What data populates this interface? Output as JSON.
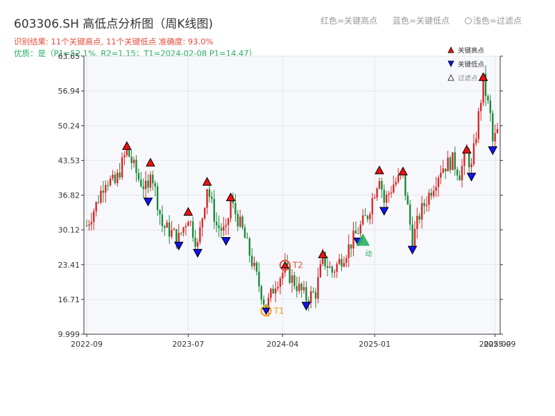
{
  "header": {
    "title": "603306.SH 高低点分析图（周K线图)",
    "legend_high": "红色=关键高点",
    "legend_low": "蓝色=关键低点",
    "legend_filtered": "浅色=过滤点",
    "result_line": "识别结果: 11个关键高点, 11个关键低点   准确度: 93.0%",
    "quality_line": "优质：是（P1=52.1%, R2=1.15；T1=2024-02-08 P1=14.47）"
  },
  "colors": {
    "up": "#d62728",
    "down": "#1a8a3a",
    "high_marker": "#ee1111",
    "low_marker": "#1111ee",
    "t1": "#f39c12",
    "t2": "#e74c3c",
    "launch": "#27ae60",
    "plot_bg": "#f7f8fb",
    "grid": "#e3e6ec"
  },
  "chart_data": {
    "type": "candlestick",
    "ylim": [
      9.999,
      63.65
    ],
    "ytick_labels": [
      "9.999",
      "16.71",
      "23.41",
      "30.12",
      "36.82",
      "43.53",
      "50.24",
      "56.94",
      "63.65"
    ],
    "xtick_labels": [
      "2022-09",
      "2023-07",
      "2024-04",
      "2025-01",
      "2025-09"
    ],
    "xtick_overlap_label": "2025-09",
    "grid": true,
    "legend": {
      "position": "top-right",
      "items": [
        "关键高点",
        "关键低点",
        "过滤点"
      ]
    },
    "key_highs": [
      {
        "week": 17,
        "price": 45.5
      },
      {
        "week": 27,
        "price": 42.3
      },
      {
        "week": 43,
        "price": 32.8
      },
      {
        "week": 51,
        "price": 38.6
      },
      {
        "week": 61,
        "price": 35.6
      },
      {
        "week": 100,
        "price": 24.6
      },
      {
        "week": 124,
        "price": 40.8
      },
      {
        "week": 134,
        "price": 40.6
      },
      {
        "week": 161,
        "price": 44.8
      },
      {
        "week": 168,
        "price": 58.8
      }
    ],
    "key_lows": [
      {
        "week": 26,
        "price": 36.4
      },
      {
        "week": 39,
        "price": 27.9
      },
      {
        "week": 47,
        "price": 26.5
      },
      {
        "week": 59,
        "price": 28.8
      },
      {
        "week": 93,
        "price": 16.3
      },
      {
        "week": 115,
        "price": 28.7
      },
      {
        "week": 126,
        "price": 34.6
      },
      {
        "week": 138,
        "price": 27.1
      },
      {
        "week": 163,
        "price": 41.2
      },
      {
        "week": 172,
        "price": 46.3
      }
    ],
    "annotations": [
      {
        "label": "T1",
        "week": 76,
        "price": 14.5,
        "kind": "trough"
      },
      {
        "label": "T2",
        "week": 84,
        "price": 23.3,
        "kind": "peak"
      },
      {
        "label": "动",
        "week": 117,
        "price": 28.0,
        "kind": "launch"
      }
    ],
    "note": "Weekly candlesticks from 2022-09 to 2025-09; price path: rise from ~31 to ~45.5, decline to ~14.5 (2024-02), rebound through ~41 and rally to ~59, closing near ~49."
  }
}
